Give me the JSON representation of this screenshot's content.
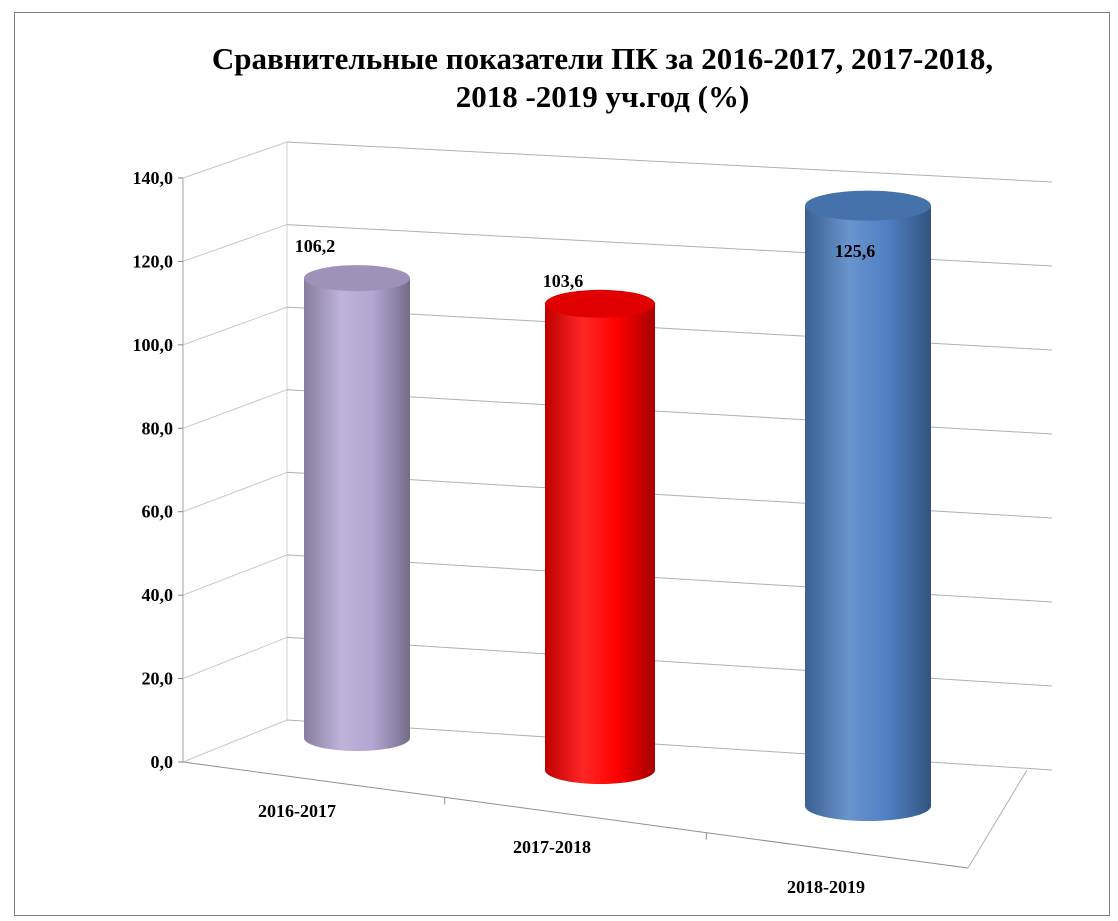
{
  "chart_data": {
    "type": "bar",
    "style": "3d-cylinder",
    "title": "Сравнительные показатели ПК за 2016-2017, 2017-2018,\n2018 -2019 уч.год (%)",
    "categories": [
      "2016-2017",
      "2017-2018",
      "2018-2019"
    ],
    "values": [
      106.2,
      103.6,
      125.6
    ],
    "value_labels": [
      "106,2",
      "103,6",
      "125,6"
    ],
    "colors": [
      "#b3a6d2",
      "#ff0000",
      "#4f81c4"
    ],
    "ylim": [
      0,
      140
    ],
    "yticks": [
      "0,0",
      "20,0",
      "40,0",
      "60,0",
      "80,0",
      "100,0",
      "120,0",
      "140,0"
    ],
    "grid": true,
    "legend": "none"
  }
}
